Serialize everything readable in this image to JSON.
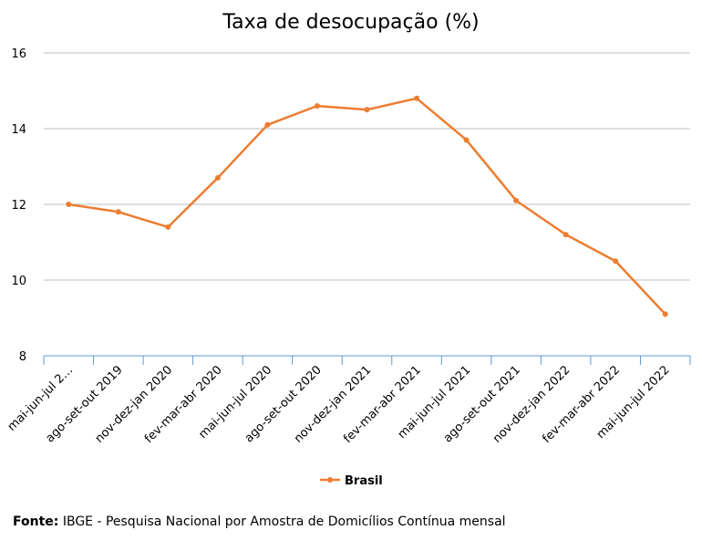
{
  "chart_data": {
    "type": "line",
    "title": "Taxa de desocupação (%)",
    "categories": [
      "mai-jun-jul 2…",
      "ago-set-out 2019",
      "nov-dez-jan 2020",
      "fev-mar-abr 2020",
      "mai-jun-jul 2020",
      "ago-set-out 2020",
      "nov-dez-jan 2021",
      "fev-mar-abr 2021",
      "mai-jun-jul 2021",
      "ago-set-out 2021",
      "nov-dez-jan 2022",
      "fev-mar-abr 2022",
      "mai-jun-jul 2022"
    ],
    "series": [
      {
        "name": "Brasil",
        "color": "#ed7d31",
        "values": [
          12.0,
          11.8,
          11.4,
          12.7,
          14.1,
          14.6,
          14.5,
          14.8,
          13.7,
          12.1,
          11.2,
          10.5,
          9.1
        ]
      }
    ],
    "ylim": [
      8,
      16
    ],
    "yticks": [
      "8",
      "10",
      "12",
      "14",
      "16"
    ],
    "xlabel": "",
    "ylabel": "",
    "grid": true,
    "legend": "bottom-center"
  },
  "source": {
    "label": "Fonte:",
    "text": " IBGE - Pesquisa Nacional por Amostra de Domicílios Contínua mensal"
  }
}
